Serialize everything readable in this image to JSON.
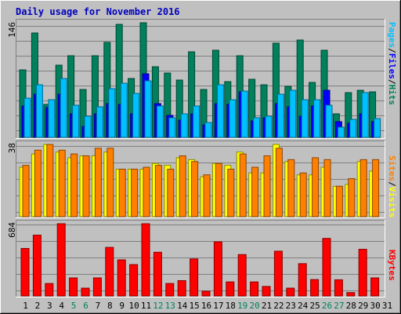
{
  "title": "Daily usage for November 2016",
  "colors": {
    "background": "#c0c0c0",
    "title": "#0000c0",
    "hits": "#00805c",
    "files": "#0000ff",
    "pages": "#00c0ff",
    "visits": "#ffff00",
    "sites": "#ff8000",
    "kbytes": "#ff0000",
    "weekend_label": "#00805c",
    "weekday_label": "#000000",
    "gridline": "#808080"
  },
  "legend": {
    "top": [
      {
        "text": "Pages",
        "color": "#00c0ff"
      },
      {
        "text": "/",
        "color": "#000000"
      },
      {
        "text": "Files",
        "color": "#0000ff"
      },
      {
        "text": "/",
        "color": "#000000"
      },
      {
        "text": "Hits",
        "color": "#00805c"
      }
    ],
    "middle": [
      {
        "text": "Sites",
        "color": "#ff8000"
      },
      {
        "text": "/",
        "color": "#000000"
      },
      {
        "text": "Visits",
        "color": "#ffff00"
      }
    ],
    "bottom": [
      {
        "text": "KBytes",
        "color": "#ff0000"
      }
    ]
  },
  "chart_data": [
    {
      "type": "bar",
      "name": "top-panel",
      "ymax_label": "146",
      "ylim": [
        0,
        146
      ],
      "categories": [
        "1",
        "2",
        "3",
        "4",
        "5",
        "6",
        "7",
        "8",
        "9",
        "10",
        "11",
        "12",
        "13",
        "14",
        "15",
        "16",
        "17",
        "18",
        "19",
        "20",
        "21",
        "22",
        "23",
        "24",
        "25",
        "26",
        "27",
        "28",
        "29",
        "30",
        "31"
      ],
      "weekend": [
        5,
        6,
        12,
        13,
        19,
        20,
        26,
        27
      ],
      "series": [
        {
          "name": "Hits",
          "values": [
            86,
            133,
            42,
            92,
            104,
            61,
            104,
            121,
            144,
            75,
            146,
            90,
            82,
            73,
            109,
            61,
            111,
            71,
            104,
            74,
            67,
            120,
            65,
            124,
            70,
            111,
            30,
            57,
            60,
            58,
            0
          ]
        },
        {
          "name": "Files",
          "values": [
            40,
            55,
            38,
            55,
            30,
            14,
            30,
            43,
            42,
            30,
            81,
            43,
            28,
            22,
            30,
            16,
            43,
            42,
            58,
            21,
            25,
            43,
            39,
            27,
            40,
            60,
            20,
            18,
            30,
            20,
            0
          ]
        },
        {
          "name": "Pages",
          "values": [
            50,
            67,
            48,
            75,
            41,
            27,
            39,
            62,
            69,
            56,
            72,
            40,
            25,
            30,
            40,
            19,
            67,
            48,
            59,
            25,
            27,
            55,
            60,
            48,
            48,
            41,
            13,
            23,
            57,
            24,
            0
          ]
        }
      ]
    },
    {
      "type": "bar",
      "name": "middle-panel",
      "ymax_label": "38",
      "ylim": [
        0,
        38
      ],
      "categories": [
        "1",
        "2",
        "3",
        "4",
        "5",
        "6",
        "7",
        "8",
        "9",
        "10",
        "11",
        "12",
        "13",
        "14",
        "15",
        "16",
        "17",
        "18",
        "19",
        "20",
        "21",
        "22",
        "23",
        "24",
        "25",
        "26",
        "27",
        "28",
        "29",
        "30",
        "31"
      ],
      "series": [
        {
          "name": "Visits",
          "values": [
            26,
            33,
            38,
            34,
            31,
            32,
            32,
            34,
            25,
            25,
            25,
            28,
            27,
            31,
            30,
            21,
            28,
            27,
            34,
            23,
            23,
            38,
            29,
            22,
            22,
            26,
            16,
            17,
            29,
            24,
            0
          ]
        },
        {
          "name": "Sites",
          "values": [
            27,
            35,
            38,
            35,
            33,
            32,
            36,
            36,
            25,
            25,
            26,
            27,
            25,
            32,
            29,
            22,
            28,
            25,
            33,
            26,
            32,
            36,
            30,
            23,
            31,
            30,
            16,
            20,
            30,
            30,
            0
          ]
        }
      ]
    },
    {
      "type": "bar",
      "name": "bottom-panel",
      "ymax_label": "684",
      "ylim": [
        0,
        684
      ],
      "categories": [
        "1",
        "2",
        "3",
        "4",
        "5",
        "6",
        "7",
        "8",
        "9",
        "10",
        "11",
        "12",
        "13",
        "14",
        "15",
        "16",
        "17",
        "18",
        "19",
        "20",
        "21",
        "22",
        "23",
        "24",
        "25",
        "26",
        "27",
        "28",
        "29",
        "30",
        "31"
      ],
      "series": [
        {
          "name": "KBytes",
          "values": [
            450,
            576,
            118,
            684,
            171,
            74,
            171,
            460,
            342,
            297,
            684,
            414,
            118,
            145,
            351,
            45,
            512,
            133,
            392,
            133,
            90,
            424,
            74,
            306,
            155,
            545,
            153,
            32,
            442,
            171,
            0
          ]
        }
      ]
    }
  ]
}
